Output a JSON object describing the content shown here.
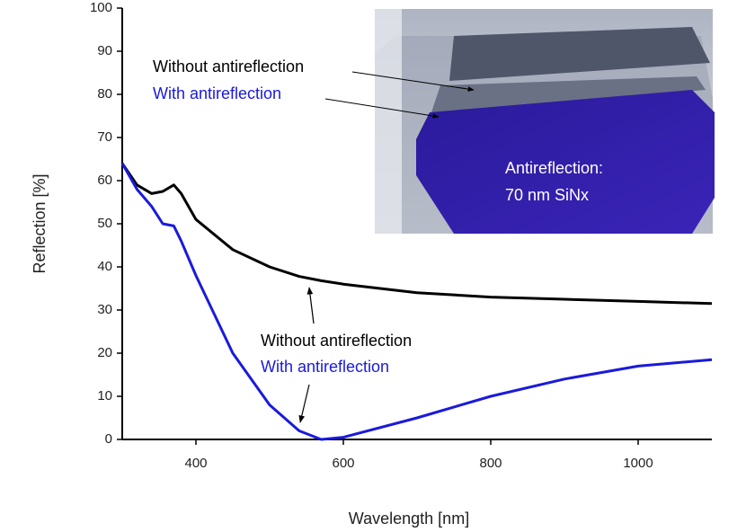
{
  "chart_data": {
    "type": "line",
    "x_label": "Wavelength [nm]",
    "y_label": "Reflection [%]",
    "x": [
      300,
      320,
      340,
      355,
      370,
      380,
      400,
      450,
      500,
      540,
      570,
      600,
      700,
      800,
      900,
      1000,
      1100
    ],
    "series": [
      {
        "name": "Without antireflection",
        "color": "#000000",
        "values": [
          64,
          59,
          57,
          57.5,
          59,
          57,
          51,
          44,
          40,
          37.8,
          36.8,
          36,
          34,
          33,
          32.5,
          32,
          31.5
        ]
      },
      {
        "name": "With antireflection",
        "color": "#1a1adc",
        "values": [
          64,
          58,
          54,
          50,
          49.5,
          46,
          38,
          20,
          8,
          2,
          0,
          0.5,
          5,
          10,
          14,
          17,
          18.5
        ]
      }
    ],
    "xlim": [
      300,
      1100
    ],
    "xticks": [
      400,
      600,
      800,
      1000
    ],
    "ylim": [
      0,
      100
    ],
    "yticks": [
      0,
      10,
      20,
      30,
      40,
      50,
      60,
      70,
      80,
      90,
      100
    ],
    "inset": {
      "labels": [
        "Without antireflection",
        "With antireflection"
      ],
      "caption": [
        "Antireflection:",
        "70 nm SiNx"
      ]
    }
  }
}
